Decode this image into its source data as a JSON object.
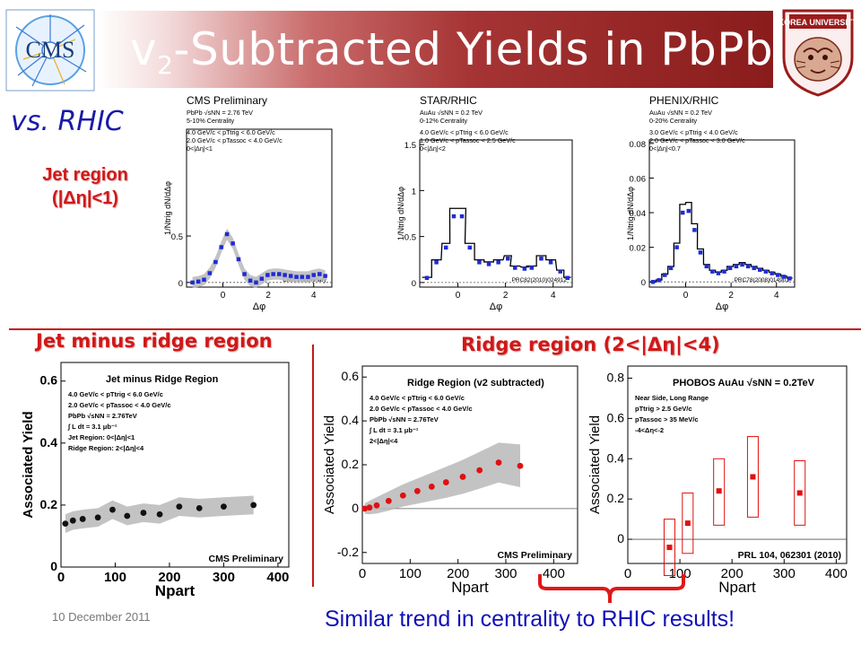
{
  "slide": {
    "title_main": "v",
    "title_sub": "2",
    "title_rest": "-Subtracted Yields in PbPb",
    "subtitle": "vs. RHIC",
    "jet_region_line1": "Jet region",
    "jet_region_line2": "(|Δη|<1)",
    "jet_minus_ridge_label": "Jet minus ridge region",
    "ridge_label": "Ridge region (2<|Δη|<4)",
    "date": "10 December 2011",
    "conclusion": "Similar trend in centrality to RHIC results!",
    "logo_left_text": "CMS",
    "logo_right_text": "KOREA UNIVERSITY"
  },
  "colors": {
    "accent_red": "#d01818",
    "blue_text": "#1a1aa8",
    "data_blue": "#1f2bd6",
    "data_red": "#e01010",
    "band_gray": "#b8b8b8"
  },
  "chart_data": [
    {
      "id": "cms-jet",
      "type": "scatter",
      "title": "CMS Preliminary",
      "info": [
        "PbPb √sNN = 2.76 TeV",
        "5-10% Centrality",
        "4.0 GeV/c < pTtrig < 6.0 GeV/c",
        "2.0 GeV/c < pTassoc < 4.0 GeV/c",
        "0<|Δη|<1"
      ],
      "watermark": "CMS Preliminary",
      "xlabel": "Δφ",
      "ylabel": "1/Ntrig dN/dΔφ",
      "xlim": [
        -1.6,
        4.8
      ],
      "ylim": [
        -0.05,
        1.65
      ],
      "xticks": [
        0,
        2,
        4
      ],
      "yticks": [
        0,
        0.5
      ],
      "x": [
        -1.34,
        -1.08,
        -0.83,
        -0.58,
        -0.32,
        -0.07,
        0.18,
        0.44,
        0.69,
        0.95,
        1.21,
        1.46,
        1.71,
        1.97,
        2.22,
        2.48,
        2.73,
        2.99,
        3.24,
        3.49,
        3.75,
        4.0,
        4.26,
        4.51
      ],
      "y": [
        0.0,
        0.01,
        0.03,
        0.1,
        0.22,
        0.38,
        0.52,
        0.42,
        0.25,
        0.09,
        0.02,
        0.0,
        0.04,
        0.08,
        0.09,
        0.09,
        0.08,
        0.07,
        0.06,
        0.06,
        0.06,
        0.08,
        0.09,
        0.07
      ],
      "band": true,
      "marker": "square"
    },
    {
      "id": "star-jet",
      "type": "scatter",
      "title": "STAR/RHIC",
      "info": [
        "AuAu √sNN = 0.2 TeV",
        "0-12% Centrality",
        "4.0 GeV/c < pTtrig < 6.0 GeV/c",
        "1.0 GeV/c < pTassoc < 2.5 GeV/c",
        "0<|Δη|<2"
      ],
      "watermark": "PRC82(2010)024912",
      "xlabel": "Δφ",
      "ylabel": "1/Ntrig dN/dΔφ",
      "xlim": [
        -1.6,
        4.8
      ],
      "ylim": [
        -0.05,
        1.55
      ],
      "xticks": [
        0,
        2,
        4
      ],
      "yticks": [
        0,
        0.5,
        1,
        1.5
      ],
      "x": [
        -1.3,
        -0.9,
        -0.5,
        -0.17,
        0.17,
        0.5,
        0.9,
        1.3,
        1.7,
        2.1,
        2.4,
        2.8,
        3.1,
        3.5,
        3.9,
        4.3,
        4.6
      ],
      "y": [
        0.05,
        0.22,
        0.38,
        0.72,
        0.72,
        0.38,
        0.22,
        0.2,
        0.22,
        0.26,
        0.16,
        0.15,
        0.16,
        0.26,
        0.22,
        0.12,
        0.05
      ],
      "marker": "square"
    },
    {
      "id": "phenix-jet",
      "type": "scatter",
      "title": "PHENIX/RHIC",
      "info": [
        "AuAu √sNN = 0.2 TeV",
        "0-20% Centrality",
        "3.0 GeV/c < pTtrig < 4.0 GeV/c",
        "2.0 GeV/c < pTassoc < 3.0 GeV/c",
        "0<|Δη|<0.7"
      ],
      "watermark": "PRC78(2008)014901",
      "xlabel": "Δφ",
      "ylabel": "1/Ntrig dN/dΔφ",
      "xlim": [
        -1.6,
        4.8
      ],
      "ylim": [
        -0.003,
        0.082
      ],
      "xticks": [
        0,
        2,
        4
      ],
      "yticks": [
        0,
        0.02,
        0.04,
        0.06,
        0.08
      ],
      "x": [
        -1.44,
        -1.18,
        -0.92,
        -0.65,
        -0.39,
        -0.13,
        0.13,
        0.39,
        0.65,
        0.92,
        1.18,
        1.44,
        1.7,
        1.96,
        2.23,
        2.49,
        2.75,
        3.01,
        3.27,
        3.53,
        3.8,
        4.06,
        4.32,
        4.58
      ],
      "y": [
        0.0,
        0.001,
        0.004,
        0.008,
        0.02,
        0.04,
        0.041,
        0.03,
        0.017,
        0.009,
        0.006,
        0.005,
        0.006,
        0.008,
        0.009,
        0.01,
        0.009,
        0.008,
        0.007,
        0.006,
        0.005,
        0.004,
        0.003,
        0.002
      ],
      "marker": "square"
    },
    {
      "id": "cms-jet-minus-ridge",
      "type": "scatter",
      "title": "Jet minus Ridge Region",
      "info": [
        "4.0 GeV/c < pTtrig < 6.0 GeV/c",
        "2.0 GeV/c < pTassoc < 4.0 GeV/c",
        "PbPb √sNN = 2.76TeV",
        "∫ L dt = 3.1 μb⁻¹",
        "Jet Region: 0<|Δη|<1",
        "Ridge Region: 2<|Δη|<4"
      ],
      "watermark": "CMS Preliminary",
      "xlabel": "Npart",
      "ylabel": "Associated Yield",
      "xlim": [
        0,
        420
      ],
      "ylim": [
        0,
        0.66
      ],
      "xticks": [
        0,
        100,
        200,
        300,
        400
      ],
      "yticks": [
        0,
        0.2,
        0.4,
        0.6
      ],
      "x": [
        8,
        22,
        40,
        68,
        95,
        122,
        152,
        182,
        218,
        255,
        300,
        355
      ],
      "y": [
        0.14,
        0.15,
        0.155,
        0.16,
        0.185,
        0.165,
        0.175,
        0.17,
        0.195,
        0.19,
        0.195,
        0.2
      ],
      "band": true,
      "marker": "circle"
    },
    {
      "id": "cms-ridge",
      "type": "scatter",
      "title": "Ridge Region (v2 subtracted)",
      "info": [
        "4.0 GeV/c < pTtrig < 6.0 GeV/c",
        "2.0 GeV/c < pTassoc < 4.0 GeV/c",
        "PbPb √sNN = 2.76TeV",
        "∫ L dt = 3.1 μb⁻¹",
        "2<|Δη|<4"
      ],
      "watermark": "CMS Preliminary",
      "xlabel": "Npart",
      "ylabel": "Associated Yield",
      "xlim": [
        0,
        450
      ],
      "ylim": [
        -0.25,
        0.65
      ],
      "xticks": [
        0,
        100,
        200,
        300,
        400
      ],
      "yticks": [
        -0.2,
        0,
        0.2,
        0.4,
        0.6
      ],
      "x": [
        5,
        15,
        30,
        55,
        85,
        115,
        145,
        175,
        210,
        245,
        285,
        330
      ],
      "y": [
        0.0,
        0.005,
        0.015,
        0.035,
        0.06,
        0.08,
        0.1,
        0.12,
        0.145,
        0.175,
        0.21,
        0.195
      ],
      "band": true,
      "marker": "circle"
    },
    {
      "id": "phobos-ridge",
      "type": "scatter",
      "title": "PHOBOS AuAu √sNN = 0.2TeV",
      "info": [
        "Near Side, Long Range",
        "pTtrig > 2.5 GeV/c",
        "pTassoc > 35 MeV/c",
        "-4<Δη<-2"
      ],
      "watermark": "PRL 104, 062301 (2010)",
      "xlabel": "Npart",
      "ylabel": "Associated Yield",
      "xlim": [
        0,
        420
      ],
      "ylim": [
        -0.12,
        0.86
      ],
      "xticks": [
        0,
        100,
        200,
        300,
        400
      ],
      "yticks": [
        0,
        0.2,
        0.4,
        0.6,
        0.8
      ],
      "x": [
        80,
        115,
        175,
        240,
        330
      ],
      "y": [
        -0.04,
        0.08,
        0.24,
        0.31,
        0.23
      ],
      "box_low": [
        -0.18,
        -0.07,
        0.07,
        0.11,
        0.07
      ],
      "box_high": [
        0.1,
        0.23,
        0.4,
        0.51,
        0.39
      ],
      "marker": "square"
    }
  ]
}
